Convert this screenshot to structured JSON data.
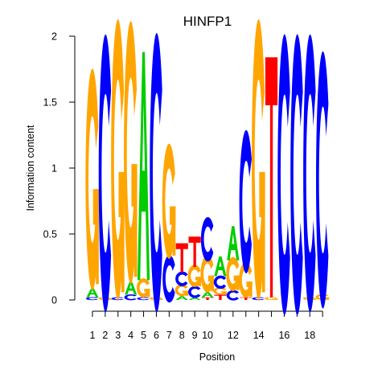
{
  "chart_data": {
    "type": "sequence-logo",
    "title": "HINFP1",
    "xlabel": "Position",
    "ylabel": "Information content",
    "ylim": [
      0,
      2
    ],
    "yticks": [
      0,
      0.5,
      1,
      1.5,
      2
    ],
    "ytick_labels": [
      "0",
      "0.5",
      "1",
      "1.5",
      "2"
    ],
    "xtick_labels": [
      "1",
      "2",
      "3",
      "4",
      "5",
      "6",
      "7",
      "8",
      "9",
      "10",
      "12",
      "14",
      "16",
      "18"
    ],
    "xtick_positions": [
      1,
      2,
      3,
      4,
      5,
      6,
      7,
      8,
      9,
      10,
      12,
      14,
      16,
      18
    ],
    "n_positions": 19,
    "colors": {
      "A": "#00cc00",
      "C": "#0000ff",
      "G": "#ffa500",
      "T": "#ff0000"
    },
    "positions": [
      {
        "pos": 1,
        "letters": [
          [
            "C",
            0.02
          ],
          [
            "A",
            0.07
          ],
          [
            "G",
            1.5
          ]
        ]
      },
      {
        "pos": 2,
        "letters": [
          [
            "G",
            0.02
          ],
          [
            "C",
            1.88
          ]
        ]
      },
      {
        "pos": 3,
        "letters": [
          [
            "C",
            0.02
          ],
          [
            "G",
            1.9
          ]
        ]
      },
      {
        "pos": 4,
        "letters": [
          [
            "C",
            0.04
          ],
          [
            "A",
            0.1
          ],
          [
            "G",
            1.78
          ]
        ]
      },
      {
        "pos": 5,
        "letters": [
          [
            "C",
            0.02
          ],
          [
            "G",
            0.13
          ],
          [
            "A",
            1.73
          ]
        ]
      },
      {
        "pos": 6,
        "letters": [
          [
            "G",
            0.02
          ],
          [
            "C",
            1.89
          ]
        ]
      },
      {
        "pos": 7,
        "letters": [
          [
            "C",
            0.32
          ],
          [
            "G",
            0.78
          ]
        ]
      },
      {
        "pos": 8,
        "letters": [
          [
            "A",
            0.03
          ],
          [
            "G",
            0.08
          ],
          [
            "C",
            0.1
          ],
          [
            "T",
            0.22
          ]
        ]
      },
      {
        "pos": 9,
        "letters": [
          [
            "A",
            0.02
          ],
          [
            "C",
            0.08
          ],
          [
            "G",
            0.15
          ],
          [
            "T",
            0.23
          ]
        ]
      },
      {
        "pos": 10,
        "letters": [
          [
            "T",
            0.02
          ],
          [
            "A",
            0.04
          ],
          [
            "G",
            0.25
          ],
          [
            "C",
            0.3
          ]
        ]
      },
      {
        "pos": 11,
        "letters": [
          [
            "T",
            0.04
          ],
          [
            "G",
            0.05
          ],
          [
            "C",
            0.09
          ],
          [
            "A",
            0.15
          ]
        ]
      },
      {
        "pos": 12,
        "letters": [
          [
            "C",
            0.07
          ],
          [
            "G",
            0.23
          ],
          [
            "A",
            0.26
          ]
        ]
      },
      {
        "pos": 13,
        "letters": [
          [
            "T",
            0.02
          ],
          [
            "G",
            0.24
          ],
          [
            "C",
            0.97
          ]
        ]
      },
      {
        "pos": 14,
        "letters": [
          [
            "C",
            0.02
          ],
          [
            "G",
            1.9
          ]
        ]
      },
      {
        "pos": 15,
        "letters": [
          [
            "G",
            0.02
          ],
          [
            "T",
            1.82
          ]
        ]
      },
      {
        "pos": 16,
        "letters": [
          [
            "C",
            1.9
          ]
        ]
      },
      {
        "pos": 17,
        "letters": [
          [
            "C",
            1.9
          ]
        ]
      },
      {
        "pos": 18,
        "letters": [
          [
            "G",
            0.02
          ],
          [
            "C",
            1.88
          ]
        ]
      },
      {
        "pos": 19,
        "letters": [
          [
            "G",
            0.04
          ],
          [
            "C",
            1.74
          ]
        ]
      }
    ]
  }
}
